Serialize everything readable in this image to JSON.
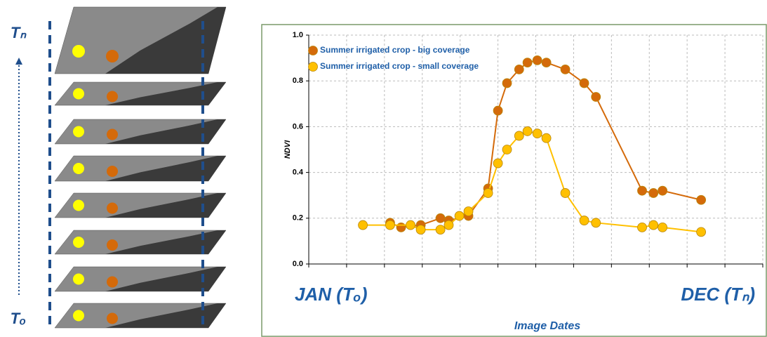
{
  "chart_data": {
    "type": "line",
    "y_label": "NDVI",
    "x_label": "Image Dates",
    "start_label": "JAN (Tₒ)",
    "end_label": "DEC (Tₙ)",
    "xlim": [
      0,
      12
    ],
    "xticks": [
      0,
      1,
      2,
      3,
      4,
      5,
      6,
      7,
      8,
      9,
      10,
      11,
      12
    ],
    "ylim": [
      0,
      1
    ],
    "yticks": [
      {
        "value": 0,
        "label": "0.0"
      },
      0.2,
      0.4,
      0.6,
      0.8,
      {
        "value": 1,
        "label": "1.0"
      }
    ],
    "grid": true,
    "legend": "top-left",
    "series": [
      {
        "name": "Summer irrigated crop  - big coverage",
        "color": "#d46a0a",
        "x": [
          2.15,
          2.44,
          2.96,
          3.48,
          3.7,
          4.22,
          4.74,
          5.0,
          5.24,
          5.56,
          5.78,
          6.04,
          6.28,
          6.78,
          7.28,
          7.59,
          8.81,
          9.11,
          9.35,
          10.37
        ],
        "values": [
          0.18,
          0.16,
          0.17,
          0.2,
          0.19,
          0.21,
          0.33,
          0.67,
          0.79,
          0.85,
          0.88,
          0.89,
          0.88,
          0.85,
          0.79,
          0.73,
          0.32,
          0.31,
          0.32,
          0.28
        ]
      },
      {
        "name": "Summer irrigated crop  - small coverage",
        "color": "#ffc000",
        "x": [
          1.43,
          2.15,
          2.69,
          2.96,
          3.48,
          3.7,
          3.98,
          4.22,
          4.74,
          5.0,
          5.24,
          5.56,
          5.78,
          6.04,
          6.28,
          6.78,
          7.28,
          7.59,
          8.81,
          9.11,
          9.35,
          10.37
        ],
        "values": [
          0.17,
          0.17,
          0.17,
          0.15,
          0.15,
          0.17,
          0.21,
          0.23,
          0.31,
          0.44,
          0.5,
          0.56,
          0.58,
          0.57,
          0.55,
          0.31,
          0.19,
          0.18,
          0.16,
          0.17,
          0.16,
          0.14
        ]
      }
    ]
  },
  "diagram": {
    "top_label": "Tₙ",
    "bottom_label": "Tₒ"
  }
}
